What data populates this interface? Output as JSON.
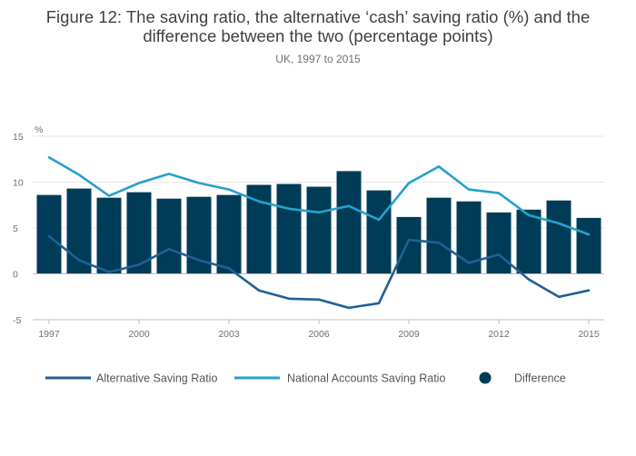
{
  "title_line1": "Figure 12: The saving ratio, the alternative ‘cash’ saving ratio (%) and the",
  "title_line2": "difference between the two (percentage points)",
  "subtitle": "UK, 1997 to 2015",
  "colors": {
    "bars": "#003c57",
    "alternative": "#206095",
    "national": "#27a0cc",
    "grid": "#e6e6e6",
    "zero": "#bebebe"
  },
  "chart_data": {
    "type": "bar+line",
    "years": [
      1997,
      1998,
      1999,
      2000,
      2001,
      2002,
      2003,
      2004,
      2005,
      2006,
      2007,
      2008,
      2009,
      2010,
      2011,
      2012,
      2013,
      2014,
      2015
    ],
    "series": [
      {
        "name": "Difference",
        "kind": "bar",
        "values": [
          8.6,
          9.3,
          8.3,
          8.9,
          8.2,
          8.4,
          8.6,
          9.7,
          9.8,
          9.5,
          11.2,
          9.1,
          6.2,
          8.3,
          7.9,
          6.7,
          7.0,
          8.0,
          6.1
        ]
      },
      {
        "name": "Alternative Saving Ratio",
        "kind": "line",
        "values": [
          4.1,
          1.5,
          0.2,
          1.0,
          2.7,
          1.5,
          0.6,
          -1.8,
          -2.7,
          -2.8,
          -3.7,
          -3.2,
          3.7,
          3.4,
          1.2,
          2.1,
          -0.6,
          -2.5,
          -1.8
        ]
      },
      {
        "name": "National Accounts Saving Ratio",
        "kind": "line",
        "values": [
          12.7,
          10.8,
          8.5,
          9.9,
          10.9,
          9.9,
          9.2,
          7.9,
          7.1,
          6.7,
          7.4,
          5.9,
          9.9,
          11.7,
          9.2,
          8.8,
          6.4,
          5.5,
          4.3
        ]
      }
    ],
    "ylabel": "%",
    "ylim": [
      -5,
      15
    ],
    "yticks": [
      "15",
      "10",
      "5",
      "0",
      "-5"
    ],
    "xticks": [
      "1997",
      "2000",
      "2003",
      "2006",
      "2009",
      "2012",
      "2015"
    ],
    "grid": true,
    "legend_position": "bottom"
  }
}
